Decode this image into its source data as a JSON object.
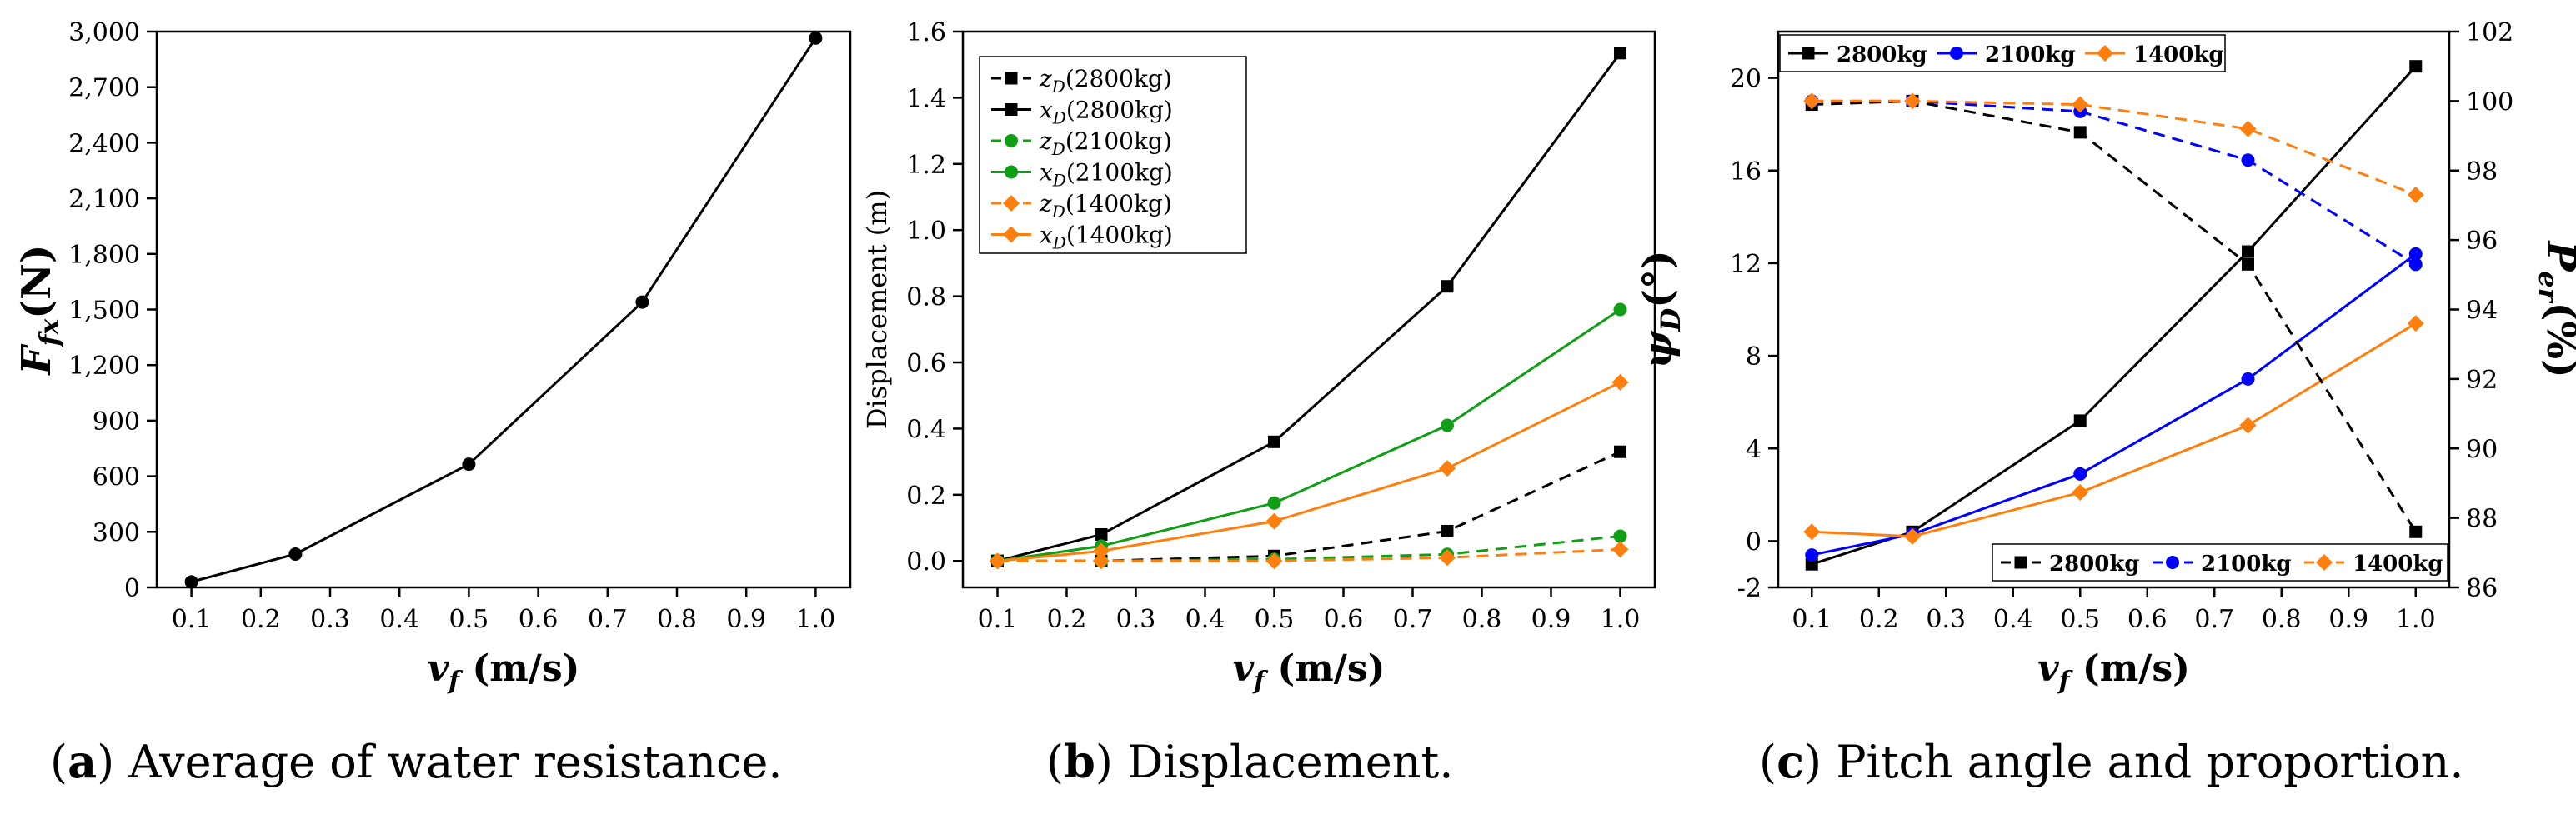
{
  "chart_data": [
    {
      "type": "line",
      "panel": "a",
      "caption": {
        "letter": "a",
        "text": "Average of water resistance."
      },
      "xlabel": {
        "main": "v",
        "sub": "f",
        "unit": "(m/s)"
      },
      "ylabel": {
        "main": "F",
        "sub": "fx",
        "unit": "(N)"
      },
      "xlim": [
        0.05,
        1.05
      ],
      "ylim": [
        0,
        3000
      ],
      "xticks": [
        "0.1",
        "0.2",
        "0.3",
        "0.4",
        "0.5",
        "0.6",
        "0.7",
        "0.8",
        "0.9",
        "1.0"
      ],
      "yticks": [
        "0",
        "300",
        "600",
        "900",
        "1,200",
        "1,500",
        "1,800",
        "2,100",
        "2,400",
        "2,700",
        "3,000"
      ],
      "grid": false,
      "series": [
        {
          "x": [
            0.1,
            0.25,
            0.5,
            0.75,
            1.0
          ],
          "y": [
            30,
            180,
            665,
            1540,
            2965
          ],
          "color": "#000000",
          "marker": "circle",
          "dash": "solid"
        }
      ]
    },
    {
      "type": "line",
      "panel": "b",
      "caption": {
        "letter": "b",
        "text": "Displacement."
      },
      "xlabel": {
        "main": "v",
        "sub": "f",
        "unit": "(m/s)"
      },
      "ylabel": {
        "text": "Displacement (m)"
      },
      "xlim": [
        0.05,
        1.05
      ],
      "ylim": [
        -0.08,
        1.6
      ],
      "xticks": [
        "0.1",
        "0.2",
        "0.3",
        "0.4",
        "0.5",
        "0.6",
        "0.7",
        "0.8",
        "0.9",
        "1.0"
      ],
      "yticks": [
        "0.0",
        "0.2",
        "0.4",
        "0.6",
        "0.8",
        "1.0",
        "1.2",
        "1.4",
        "1.6"
      ],
      "grid": false,
      "legend": "top-left",
      "series": [
        {
          "name": "z_D(2800kg)",
          "sym": "z",
          "mass": "(2800kg)",
          "x": [
            0.1,
            0.25,
            0.5,
            0.75,
            1.0
          ],
          "y": [
            0.0,
            0.0,
            0.015,
            0.09,
            0.33
          ],
          "color": "#000000",
          "marker": "square",
          "dash": "dashed"
        },
        {
          "name": "x_D(2800kg)",
          "sym": "x",
          "mass": "(2800kg)",
          "x": [
            0.1,
            0.25,
            0.5,
            0.75,
            1.0
          ],
          "y": [
            0.0,
            0.08,
            0.36,
            0.83,
            1.535
          ],
          "color": "#000000",
          "marker": "square",
          "dash": "solid"
        },
        {
          "name": "z_D(2100kg)",
          "sym": "z",
          "mass": "(2100kg)",
          "x": [
            0.1,
            0.25,
            0.5,
            0.75,
            1.0
          ],
          "y": [
            0.0,
            0.0,
            0.005,
            0.02,
            0.075
          ],
          "color": "#109e16",
          "marker": "circle",
          "dash": "dashed"
        },
        {
          "name": "x_D(2100kg)",
          "sym": "x",
          "mass": "(2100kg)",
          "x": [
            0.1,
            0.25,
            0.5,
            0.75,
            1.0
          ],
          "y": [
            0.0,
            0.045,
            0.175,
            0.41,
            0.76
          ],
          "color": "#109e16",
          "marker": "circle",
          "dash": "solid"
        },
        {
          "name": "z_D(1400kg)",
          "sym": "z",
          "mass": "(1400kg)",
          "x": [
            0.1,
            0.25,
            0.5,
            0.75,
            1.0
          ],
          "y": [
            0.0,
            0.0,
            0.0,
            0.01,
            0.035
          ],
          "color": "#ff7f0e",
          "marker": "diamond",
          "dash": "dashed"
        },
        {
          "name": "x_D(1400kg)",
          "sym": "x",
          "mass": "(1400kg)",
          "x": [
            0.1,
            0.25,
            0.5,
            0.75,
            1.0
          ],
          "y": [
            0.0,
            0.03,
            0.12,
            0.28,
            0.54
          ],
          "color": "#ff7f0e",
          "marker": "diamond",
          "dash": "solid"
        }
      ]
    },
    {
      "type": "line",
      "panel": "c",
      "caption": {
        "letter": "c",
        "text": "Pitch angle and proportion."
      },
      "xlabel": {
        "main": "v",
        "sub": "f",
        "unit": "(m/s)"
      },
      "ylabel": {
        "main": "ψ",
        "sub": "D",
        "unit": "(°)"
      },
      "ylabel_right": {
        "main": "P",
        "sub": "er",
        "unit": "(%)"
      },
      "xlim": [
        0.05,
        1.05
      ],
      "ylim": [
        -2,
        22
      ],
      "ylim_right": [
        86,
        102
      ],
      "xticks": [
        "0.1",
        "0.2",
        "0.3",
        "0.4",
        "0.5",
        "0.6",
        "0.7",
        "0.8",
        "0.9",
        "1.0"
      ],
      "yticks": [
        "-2",
        "0",
        "4",
        "8",
        "12",
        "16",
        "20"
      ],
      "yticks_right": [
        "86",
        "88",
        "90",
        "92",
        "94",
        "96",
        "98",
        "100",
        "102"
      ],
      "grid": false,
      "legend": "top-left (solid), bottom-right (dashed)",
      "series": [
        {
          "name": "2800kg",
          "axis": "left",
          "x": [
            0.1,
            0.25,
            0.5,
            0.75,
            1.0
          ],
          "y": [
            -1.0,
            0.4,
            5.2,
            12.5,
            20.5
          ],
          "color": "#000000",
          "marker": "square",
          "dash": "solid"
        },
        {
          "name": "2100kg",
          "axis": "left",
          "x": [
            0.1,
            0.25,
            0.5,
            0.75,
            1.0
          ],
          "y": [
            -0.6,
            0.3,
            2.9,
            7.0,
            12.4
          ],
          "color": "#0000ff",
          "marker": "circle",
          "dash": "solid"
        },
        {
          "name": "1400kg",
          "axis": "left",
          "x": [
            0.1,
            0.25,
            0.5,
            0.75,
            1.0
          ],
          "y": [
            0.4,
            0.2,
            2.1,
            5.0,
            9.4
          ],
          "color": "#ff7f0e",
          "marker": "diamond",
          "dash": "solid"
        },
        {
          "name": "2800kg",
          "axis": "right",
          "x": [
            0.1,
            0.25,
            0.5,
            0.75,
            1.0
          ],
          "y": [
            99.9,
            100.0,
            99.1,
            95.3,
            87.6
          ],
          "color": "#000000",
          "marker": "square",
          "dash": "dashed"
        },
        {
          "name": "2100kg",
          "axis": "right",
          "x": [
            0.1,
            0.25,
            0.5,
            0.75,
            1.0
          ],
          "y": [
            100.0,
            100.0,
            99.7,
            98.3,
            95.3
          ],
          "color": "#0000ff",
          "marker": "circle",
          "dash": "dashed"
        },
        {
          "name": "1400kg",
          "axis": "right",
          "x": [
            0.1,
            0.25,
            0.5,
            0.75,
            1.0
          ],
          "y": [
            100.0,
            100.0,
            99.9,
            99.2,
            97.3
          ],
          "color": "#ff7f0e",
          "marker": "diamond",
          "dash": "dashed"
        }
      ]
    }
  ]
}
